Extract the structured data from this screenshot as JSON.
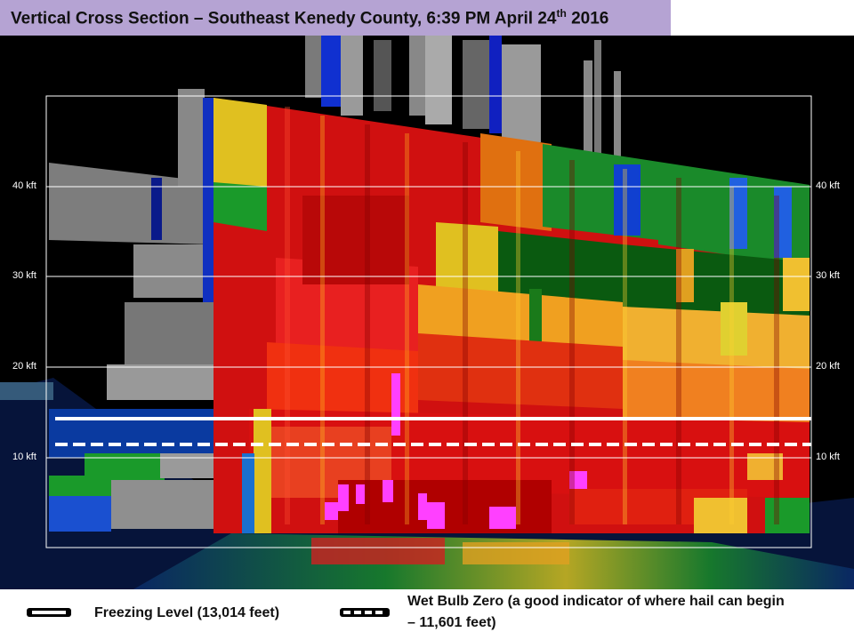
{
  "title": {
    "main": "Vertical Cross Section – Southeast Kenedy County, 6:39 PM April 24",
    "ordinal_suffix": "th",
    "year": " 2016"
  },
  "axis": {
    "left_ticks": [
      "40 kft",
      "30 kft",
      "20 kft",
      "10 kft"
    ],
    "right_ticks": [
      "40 kft",
      "30 kft",
      "20 kft",
      "10 kft"
    ]
  },
  "legend": {
    "freezing_level": "Freezing Level (13,014 feet)",
    "wet_bulb_zero_line1": "Wet Bulb Zero (a good indicator of where hail can begin",
    "wet_bulb_zero_line2": "– 11,601 feet)"
  },
  "colors": {
    "title_bg": "#b5a3d3",
    "freezing_line": "#ffffff",
    "wet_bulb_line": "#ffffff"
  }
}
